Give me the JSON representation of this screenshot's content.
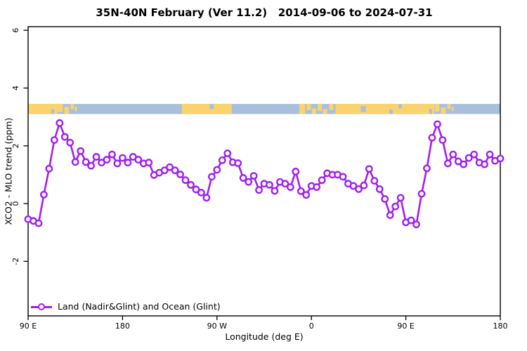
{
  "title": "35N-40N February (Ver 11.2)   2014-09-06 to 2024-07-31",
  "legend": {
    "label": "Land (Nadir&Glint) and Ocean (Glint)"
  },
  "colors": {
    "series_purple": "#A020F0",
    "marker_fill": "#FFFFFF",
    "ocean_blue": "#A9C0DD",
    "land_tan": "#FBD36E",
    "axis_black": "#000000"
  },
  "chart_data": {
    "type": "line",
    "title": "35N-40N February (Ver 11.2)   2014-09-06 to 2024-07-31",
    "xlabel": "Longitude (deg E)",
    "ylabel": "XCO2 - MLO trend (ppm)",
    "x_tick_labels": [
      "90 E",
      "180",
      "90 W",
      "0",
      "90 E",
      "180"
    ],
    "x_tick_lons": [
      90,
      180,
      270,
      360,
      450,
      540
    ],
    "y_ticks": [
      -2,
      0,
      2,
      4,
      6
    ],
    "xlim": [
      90,
      540
    ],
    "ylim": [
      -3.9,
      6.1
    ],
    "grid": "off",
    "legend_position": "bottom-left",
    "series": [
      {
        "name": "Land (Nadir&Glint) and Ocean (Glint)",
        "color": "#A020F0",
        "marker": "open-circle",
        "x": [
          90,
          95,
          100,
          105,
          110,
          115,
          120,
          125,
          130,
          135,
          140,
          145,
          150,
          155,
          160,
          165,
          170,
          175,
          180,
          185,
          190,
          195,
          200,
          205,
          210,
          215,
          220,
          225,
          230,
          235,
          240,
          245,
          250,
          255,
          260,
          265,
          270,
          275,
          280,
          285,
          290,
          295,
          300,
          305,
          310,
          315,
          320,
          325,
          330,
          335,
          340,
          345,
          350,
          355,
          360,
          365,
          370,
          375,
          380,
          385,
          390,
          395,
          400,
          405,
          410,
          415,
          420,
          425,
          430,
          435,
          440,
          445,
          450,
          455,
          460,
          465,
          470,
          475,
          480,
          485,
          490,
          495,
          500,
          505,
          510,
          515,
          520,
          525,
          530,
          535,
          540
        ],
        "y": [
          -0.54,
          -0.6,
          -0.68,
          0.31,
          1.21,
          2.2,
          2.79,
          2.31,
          2.11,
          1.44,
          1.82,
          1.44,
          1.31,
          1.62,
          1.42,
          1.52,
          1.7,
          1.39,
          1.58,
          1.42,
          1.62,
          1.52,
          1.39,
          1.42,
          0.99,
          1.07,
          1.15,
          1.26,
          1.15,
          1.01,
          0.81,
          0.65,
          0.49,
          0.38,
          0.2,
          0.93,
          1.17,
          1.5,
          1.74,
          1.43,
          1.4,
          0.89,
          0.75,
          0.96,
          0.47,
          0.69,
          0.65,
          0.44,
          0.75,
          0.69,
          0.57,
          1.11,
          0.43,
          0.3,
          0.61,
          0.57,
          0.81,
          1.05,
          1.0,
          1.0,
          0.93,
          0.69,
          0.61,
          0.5,
          0.63,
          1.2,
          0.79,
          0.5,
          0.16,
          -0.4,
          -0.1,
          0.2,
          -0.65,
          -0.58,
          -0.72,
          0.34,
          1.22,
          2.28,
          2.75,
          2.2,
          1.39,
          1.7,
          1.46,
          1.36,
          1.58,
          1.7,
          1.42,
          1.36,
          1.7,
          1.48,
          1.56
        ]
      }
    ],
    "band": {
      "meaning": "surface type along latitude band: tan = land, blue = ocean",
      "y_range_ppm": [
        3.1,
        3.45
      ],
      "ocean_color": "#A9C0DD",
      "land_color": "#FBD36E",
      "land_segments_lon": [
        [
          90,
          118
        ],
        [
          236.5,
          284
        ],
        [
          383,
          477
        ]
      ],
      "land_patches_lon": [
        [
          118,
          123,
          0,
          0.8
        ],
        [
          124.5,
          129,
          0.3,
          1
        ],
        [
          130.5,
          133.5,
          0,
          0.5
        ],
        [
          134.5,
          136.5,
          0.25,
          0.75
        ],
        [
          348.5,
          354,
          0,
          1
        ],
        [
          355.5,
          359.5,
          0,
          0.6
        ],
        [
          360.5,
          364.5,
          0.45,
          1
        ],
        [
          366,
          370,
          0,
          0.7
        ],
        [
          371,
          375,
          0.5,
          1
        ],
        [
          377,
          381,
          0,
          0.6
        ],
        [
          477.5,
          482,
          0,
          0.75
        ],
        [
          483.5,
          488,
          0.35,
          1
        ],
        [
          489.5,
          492.5,
          0,
          0.5
        ],
        [
          493.5,
          495.5,
          0.3,
          0.7
        ]
      ],
      "ocean_patches_lon": [
        [
          112,
          115,
          0.5,
          1
        ],
        [
          263,
          267,
          0,
          0.5
        ],
        [
          407,
          412,
          0.2,
          0.8
        ],
        [
          434,
          437.5,
          0.55,
          1
        ],
        [
          443,
          446,
          0,
          0.45
        ],
        [
          472,
          475,
          0.5,
          1
        ]
      ]
    }
  }
}
